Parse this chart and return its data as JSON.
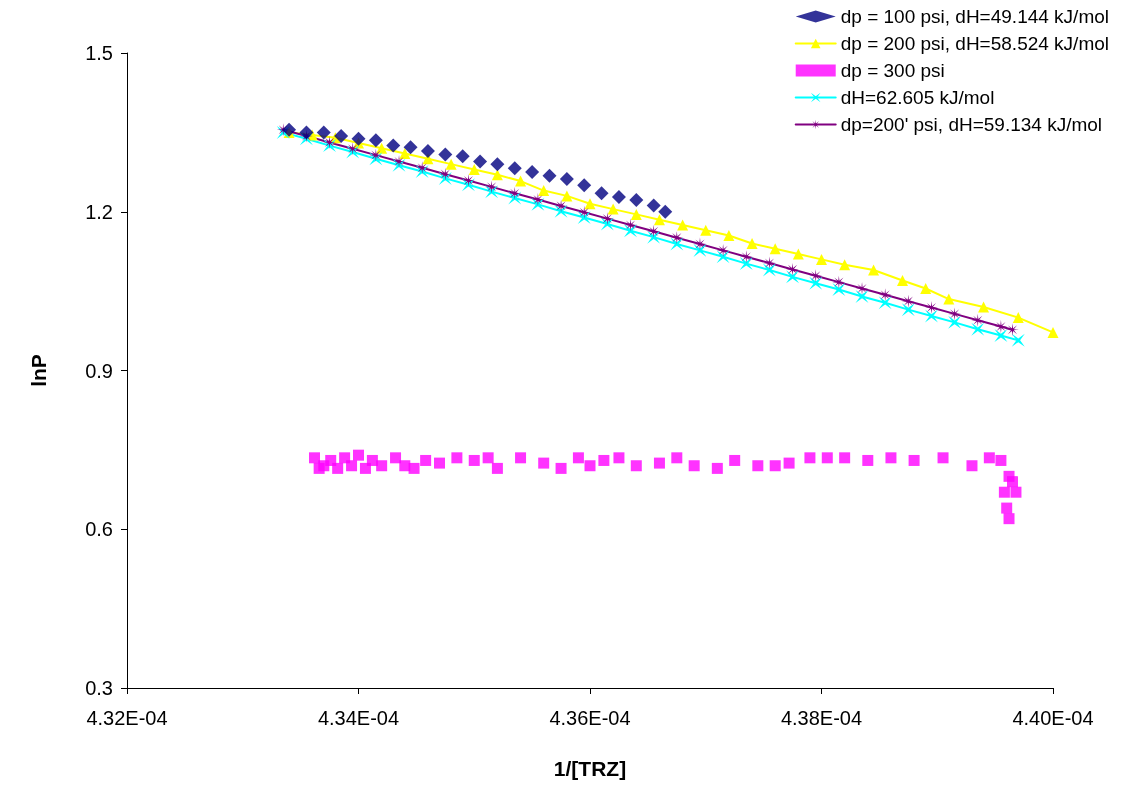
{
  "chart_data": {
    "type": "scatter",
    "xlabel": "1/[TRZ]",
    "ylabel": "lnP",
    "xlim": [
      0.000432,
      0.00044
    ],
    "ylim": [
      0.3,
      1.5
    ],
    "xticks": [
      {
        "value": 0.000432,
        "label": "4.32E-04"
      },
      {
        "value": 0.000434,
        "label": "4.34E-04"
      },
      {
        "value": 0.000436,
        "label": "4.36E-04"
      },
      {
        "value": 0.000438,
        "label": "4.38E-04"
      },
      {
        "value": 0.00044,
        "label": "4.40E-04"
      }
    ],
    "yticks": [
      0.3,
      0.6,
      0.9,
      1.2,
      1.5
    ],
    "grid": false,
    "legend": "top right",
    "series": [
      {
        "name": "dp = 100 psi, dH=49.144 kJ/mol",
        "type": "scatter",
        "marker": "diamond",
        "color": "#000080",
        "x": [
          0.0004334,
          0.00043355,
          0.0004337,
          0.00043385,
          0.000434,
          0.00043415,
          0.0004343,
          0.00043445,
          0.0004346,
          0.00043475,
          0.0004349,
          0.00043505,
          0.0004352,
          0.00043535,
          0.0004355,
          0.00043565,
          0.0004358,
          0.00043595,
          0.0004361,
          0.00043625,
          0.0004364,
          0.00043655,
          0.00043665
        ],
        "values": [
          1.355,
          1.35,
          1.35,
          1.343,
          1.338,
          1.335,
          1.325,
          1.322,
          1.315,
          1.308,
          1.305,
          1.295,
          1.29,
          1.282,
          1.275,
          1.268,
          1.262,
          1.25,
          1.235,
          1.228,
          1.222,
          1.212,
          1.2
        ]
      },
      {
        "name": "dp = 200 psi, dH=58.524 kJ/mol",
        "type": "line",
        "marker": "triangle",
        "line_style": "solid",
        "color": "#ffff00",
        "x": [
          0.0004334,
          0.0004336,
          0.0004338,
          0.000434,
          0.0004342,
          0.0004344,
          0.0004346,
          0.0004348,
          0.000435,
          0.0004352,
          0.0004354,
          0.0004356,
          0.0004358,
          0.000436,
          0.0004362,
          0.0004364,
          0.0004366,
          0.0004368,
          0.000437,
          0.0004372,
          0.0004374,
          0.0004376,
          0.0004378,
          0.000438,
          0.0004382,
          0.00043845,
          0.0004387,
          0.0004389,
          0.0004391,
          0.0004394,
          0.0004397,
          0.00044
        ],
        "values": [
          1.35,
          1.345,
          1.34,
          1.33,
          1.32,
          1.31,
          1.3,
          1.29,
          1.28,
          1.27,
          1.258,
          1.24,
          1.23,
          1.215,
          1.205,
          1.195,
          1.185,
          1.175,
          1.165,
          1.155,
          1.14,
          1.13,
          1.12,
          1.11,
          1.1,
          1.09,
          1.07,
          1.055,
          1.035,
          1.02,
          1.0,
          0.972
        ]
      },
      {
        "name": "dp = 300 psi",
        "type": "scatter",
        "marker": "square",
        "color": "#ff00ff",
        "x": [
          0.00043362,
          0.00043366,
          0.0004337,
          0.00043376,
          0.00043382,
          0.00043388,
          0.00043394,
          0.000434,
          0.00043406,
          0.00043412,
          0.0004342,
          0.00043432,
          0.0004344,
          0.00043448,
          0.00043458,
          0.0004347,
          0.00043485,
          0.000435,
          0.00043512,
          0.0004352,
          0.0004354,
          0.0004356,
          0.00043575,
          0.0004359,
          0.000436,
          0.00043612,
          0.00043625,
          0.0004364,
          0.0004366,
          0.00043675,
          0.0004369,
          0.0004371,
          0.00043725,
          0.00043745,
          0.0004376,
          0.00043772,
          0.0004379,
          0.00043805,
          0.0004382,
          0.0004384,
          0.0004386,
          0.0004388,
          0.00043905,
          0.0004393,
          0.00043945,
          0.00043955,
          0.00043962,
          0.00043965,
          0.00043958,
          0.0004396,
          0.00043968,
          0.00043962
        ],
        "values": [
          0.735,
          0.715,
          0.72,
          0.73,
          0.715,
          0.735,
          0.72,
          0.74,
          0.715,
          0.73,
          0.72,
          0.735,
          0.72,
          0.715,
          0.73,
          0.725,
          0.735,
          0.73,
          0.735,
          0.715,
          0.735,
          0.725,
          0.715,
          0.735,
          0.72,
          0.73,
          0.735,
          0.72,
          0.725,
          0.735,
          0.72,
          0.715,
          0.73,
          0.72,
          0.72,
          0.725,
          0.735,
          0.735,
          0.735,
          0.73,
          0.735,
          0.73,
          0.735,
          0.72,
          0.735,
          0.73,
          0.7,
          0.69,
          0.67,
          0.64,
          0.67,
          0.62
        ]
      },
      {
        "name": "dH=62.605 kJ/mol",
        "type": "line",
        "marker": "cross",
        "line_style": "solid",
        "color": "#00ffff",
        "x": [
          0.00043335,
          0.00043355,
          0.00043375,
          0.00043395,
          0.00043415,
          0.00043435,
          0.00043455,
          0.00043475,
          0.00043495,
          0.00043515,
          0.00043535,
          0.00043555,
          0.00043575,
          0.00043595,
          0.00043615,
          0.00043635,
          0.00043655,
          0.00043675,
          0.00043695,
          0.00043715,
          0.00043735,
          0.00043755,
          0.00043775,
          0.00043795,
          0.00043815,
          0.00043835,
          0.00043855,
          0.00043875,
          0.00043895,
          0.00043915,
          0.00043935,
          0.00043955,
          0.0004397
        ],
        "values": [
          1.35,
          1.338,
          1.325,
          1.313,
          1.3,
          1.288,
          1.276,
          1.263,
          1.251,
          1.238,
          1.226,
          1.214,
          1.201,
          1.189,
          1.177,
          1.164,
          1.152,
          1.139,
          1.127,
          1.115,
          1.102,
          1.09,
          1.077,
          1.065,
          1.053,
          1.04,
          1.028,
          1.015,
          1.003,
          0.991,
          0.978,
          0.966,
          0.957
        ]
      },
      {
        "name": "dp=200' psi, dH=59.134 kJ/mol",
        "type": "line",
        "marker": "star",
        "line_style": "solid",
        "color": "#800080",
        "x": [
          0.00043335,
          0.00043355,
          0.00043375,
          0.00043395,
          0.00043415,
          0.00043435,
          0.00043455,
          0.00043475,
          0.00043495,
          0.00043515,
          0.00043535,
          0.00043555,
          0.00043575,
          0.00043595,
          0.00043615,
          0.00043635,
          0.00043655,
          0.00043675,
          0.00043695,
          0.00043715,
          0.00043735,
          0.00043755,
          0.00043775,
          0.00043795,
          0.00043815,
          0.00043835,
          0.00043855,
          0.00043875,
          0.00043895,
          0.00043915,
          0.00043935,
          0.00043955,
          0.00043965
        ],
        "values": [
          1.355,
          1.343,
          1.331,
          1.319,
          1.307,
          1.295,
          1.283,
          1.271,
          1.259,
          1.247,
          1.235,
          1.223,
          1.211,
          1.199,
          1.187,
          1.175,
          1.163,
          1.151,
          1.139,
          1.127,
          1.115,
          1.103,
          1.091,
          1.079,
          1.067,
          1.055,
          1.043,
          1.031,
          1.019,
          1.007,
          0.995,
          0.983,
          0.977
        ]
      }
    ]
  }
}
